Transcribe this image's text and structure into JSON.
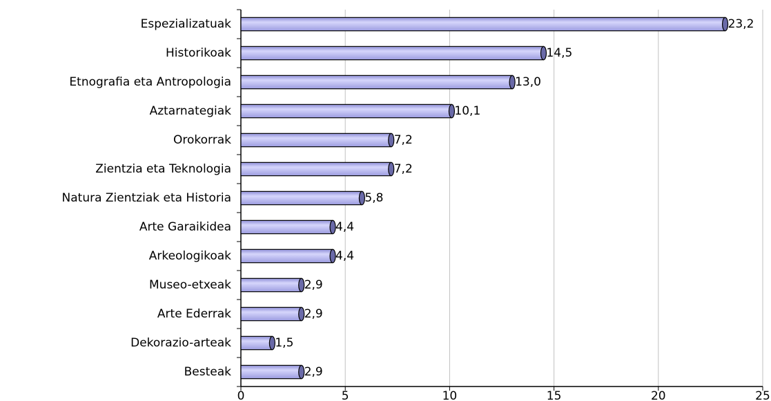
{
  "chart_data": {
    "type": "bar",
    "orientation": "horizontal",
    "categories": [
      "Espezializatuak",
      "Historikoak",
      "Etnografia eta Antropologia",
      "Aztarnategiak",
      "Orokorrak",
      "Zientzia eta Teknologia",
      "Natura Zientziak eta Historia",
      "Arte Garaikidea",
      "Arkeologikoak",
      "Museo-etxeak",
      "Arte Ederrak",
      "Dekorazio-arteak",
      "Besteak"
    ],
    "values": [
      23.2,
      14.5,
      13.0,
      10.1,
      7.2,
      7.2,
      5.8,
      4.4,
      4.4,
      2.9,
      2.9,
      1.5,
      2.9
    ],
    "value_labels": [
      "23,2",
      "14,5",
      "13,0",
      "10,1",
      "7,2",
      "7,2",
      "5,8",
      "4,4",
      "4,4",
      "2,9",
      "2,9",
      "1,5",
      "2,9"
    ],
    "color": "#b4b4f0",
    "xlim": [
      0,
      25
    ],
    "xticks": [
      0,
      5,
      10,
      15,
      20,
      25
    ],
    "grid": true
  }
}
